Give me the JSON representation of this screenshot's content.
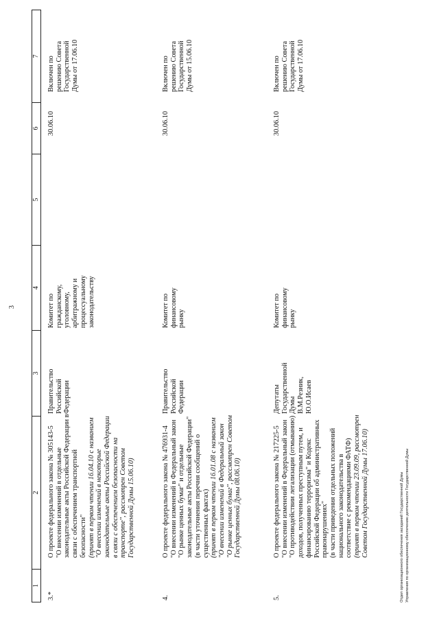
{
  "page_number": "3",
  "header": [
    "1",
    "2",
    "3",
    "4",
    "5",
    "6",
    "7"
  ],
  "rows": [
    {
      "number": "3.*",
      "description": [
        {
          "text": "О проекте федерального закона № 305143-5",
          "italic": false
        },
        {
          "text": "\"О внесении изменений в отдельные",
          "italic": false
        },
        {
          "text": "законодательные акты Российской Федерации в",
          "italic": false
        },
        {
          "text": "связи с обеспечением транспортной",
          "italic": false
        },
        {
          "text": "безопасности\"",
          "italic": false
        },
        {
          "text": "(принят в первом чтении 16.04.10 с названием",
          "italic": true
        },
        {
          "text": "\"О внесении изменений в некоторые",
          "italic": true
        },
        {
          "text": "законодательные акты Российской Федерации",
          "italic": true
        },
        {
          "text": "в связи с обеспечением безопасности на",
          "italic": true
        },
        {
          "text": "транспорте\", рассмотрен Советом",
          "italic": true
        },
        {
          "text": "Государственной Думы 15.06.10)",
          "italic": true
        }
      ],
      "author": [
        "Правительство",
        "Российской",
        "Федерации"
      ],
      "committee": [
        "Комитет по",
        "гражданскому,",
        "уголовному,",
        "арбитражному и",
        "процессуальному",
        "законодательству"
      ],
      "col5": "",
      "date": "30.06.10",
      "note": [
        "Включен по",
        "решению Совета",
        "Государственной",
        "Думы от 17.06.10"
      ]
    },
    {
      "number": "4.",
      "description": [
        {
          "text": "О проекте федерального закона № 476931-4",
          "italic": false
        },
        {
          "text": "\"О внесении изменений в Федеральный закон",
          "italic": false
        },
        {
          "text": "\"О рынке ценных бумаг\" и отдельные",
          "italic": false
        },
        {
          "text": "законодательные акты Российской Федерации\"",
          "italic": false
        },
        {
          "text": "(в части уточнения перечня сообщений о",
          "italic": false
        },
        {
          "text": "существенных фактах)",
          "italic": false
        },
        {
          "text": "(принят в первом чтении 16.01.08 с названием",
          "italic": true
        },
        {
          "text": "\"О внесении изменений в Федеральный закон",
          "italic": true
        },
        {
          "text": "\"О рынке ценных бумаг\", рассмотрен Советом",
          "italic": true
        },
        {
          "text": "Государственной Думы 08.06.10)",
          "italic": true
        }
      ],
      "author": [
        "Правительство",
        "Российской",
        "Федерации"
      ],
      "committee": [
        "Комитет по",
        "финансовому",
        "рынку"
      ],
      "col5": "",
      "date": "30.06.10",
      "note": [
        "Включен по",
        "решению Совета",
        "Государственной",
        "Думы от 15.06.10"
      ]
    },
    {
      "number": "5.",
      "description": [
        {
          "text": "О проекте федерального закона № 217225-5",
          "italic": false
        },
        {
          "text": "\"О внесении изменений в Федеральный закон",
          "italic": false
        },
        {
          "text": "\"О противодействии легализации (отмыванию)",
          "italic": false
        },
        {
          "text": "доходов, полученных преступным путем, и",
          "italic": false
        },
        {
          "text": "финансированию терроризма\" и Кодекс",
          "italic": false
        },
        {
          "text": "Российской Федерации об административных",
          "italic": false
        },
        {
          "text": "правонарушениях\"",
          "italic": false
        },
        {
          "text": "(в части приведения отдельных положений",
          "italic": false
        },
        {
          "text": "национального законодательства в",
          "italic": false
        },
        {
          "text": "соответствие с рекомендациями ФАТФ)",
          "italic": false
        },
        {
          "text": "(принят в первом чтении 23.09.09, рассмотрен",
          "italic": true
        },
        {
          "text": "Советом Государственной Думы 17.06.10)",
          "italic": true
        }
      ],
      "author": [
        "Депутаты",
        "Государственной",
        "Думы",
        "В.М.Резник,",
        "Ю.О.Исаев"
      ],
      "committee": [
        "Комитет по",
        "финансовому",
        "рынку"
      ],
      "col5": "",
      "date": "30.06.10",
      "note": [
        "Включен по",
        "решению Совета",
        "Государственной",
        "Думы от 17.06.10"
      ]
    }
  ],
  "footer": [
    "Отдел организационного обеспечения заседаний Государственной Думы",
    "Управления по организационному обеспечению деятельности Государственной Думы"
  ]
}
